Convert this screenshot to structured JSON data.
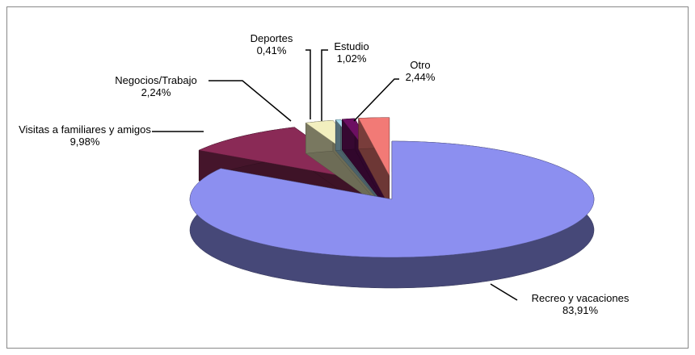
{
  "chart_data": {
    "type": "pie",
    "categories": [
      "Recreo y vacaciones",
      "Visitas a familiares y amigos",
      "Negocios/Trabajo",
      "Deportes",
      "Estudio",
      "Otro"
    ],
    "values": [
      83.91,
      9.98,
      2.24,
      0.41,
      1.02,
      2.44
    ],
    "value_labels": [
      "83,91%",
      "9,98%",
      "2,24%",
      "0,41%",
      "1,02%",
      "2,44%"
    ],
    "colors": [
      "#8c8ff0",
      "#8a2a56",
      "#f2efbf",
      "#a8dced",
      "#6c0f62",
      "#f27a76"
    ]
  }
}
